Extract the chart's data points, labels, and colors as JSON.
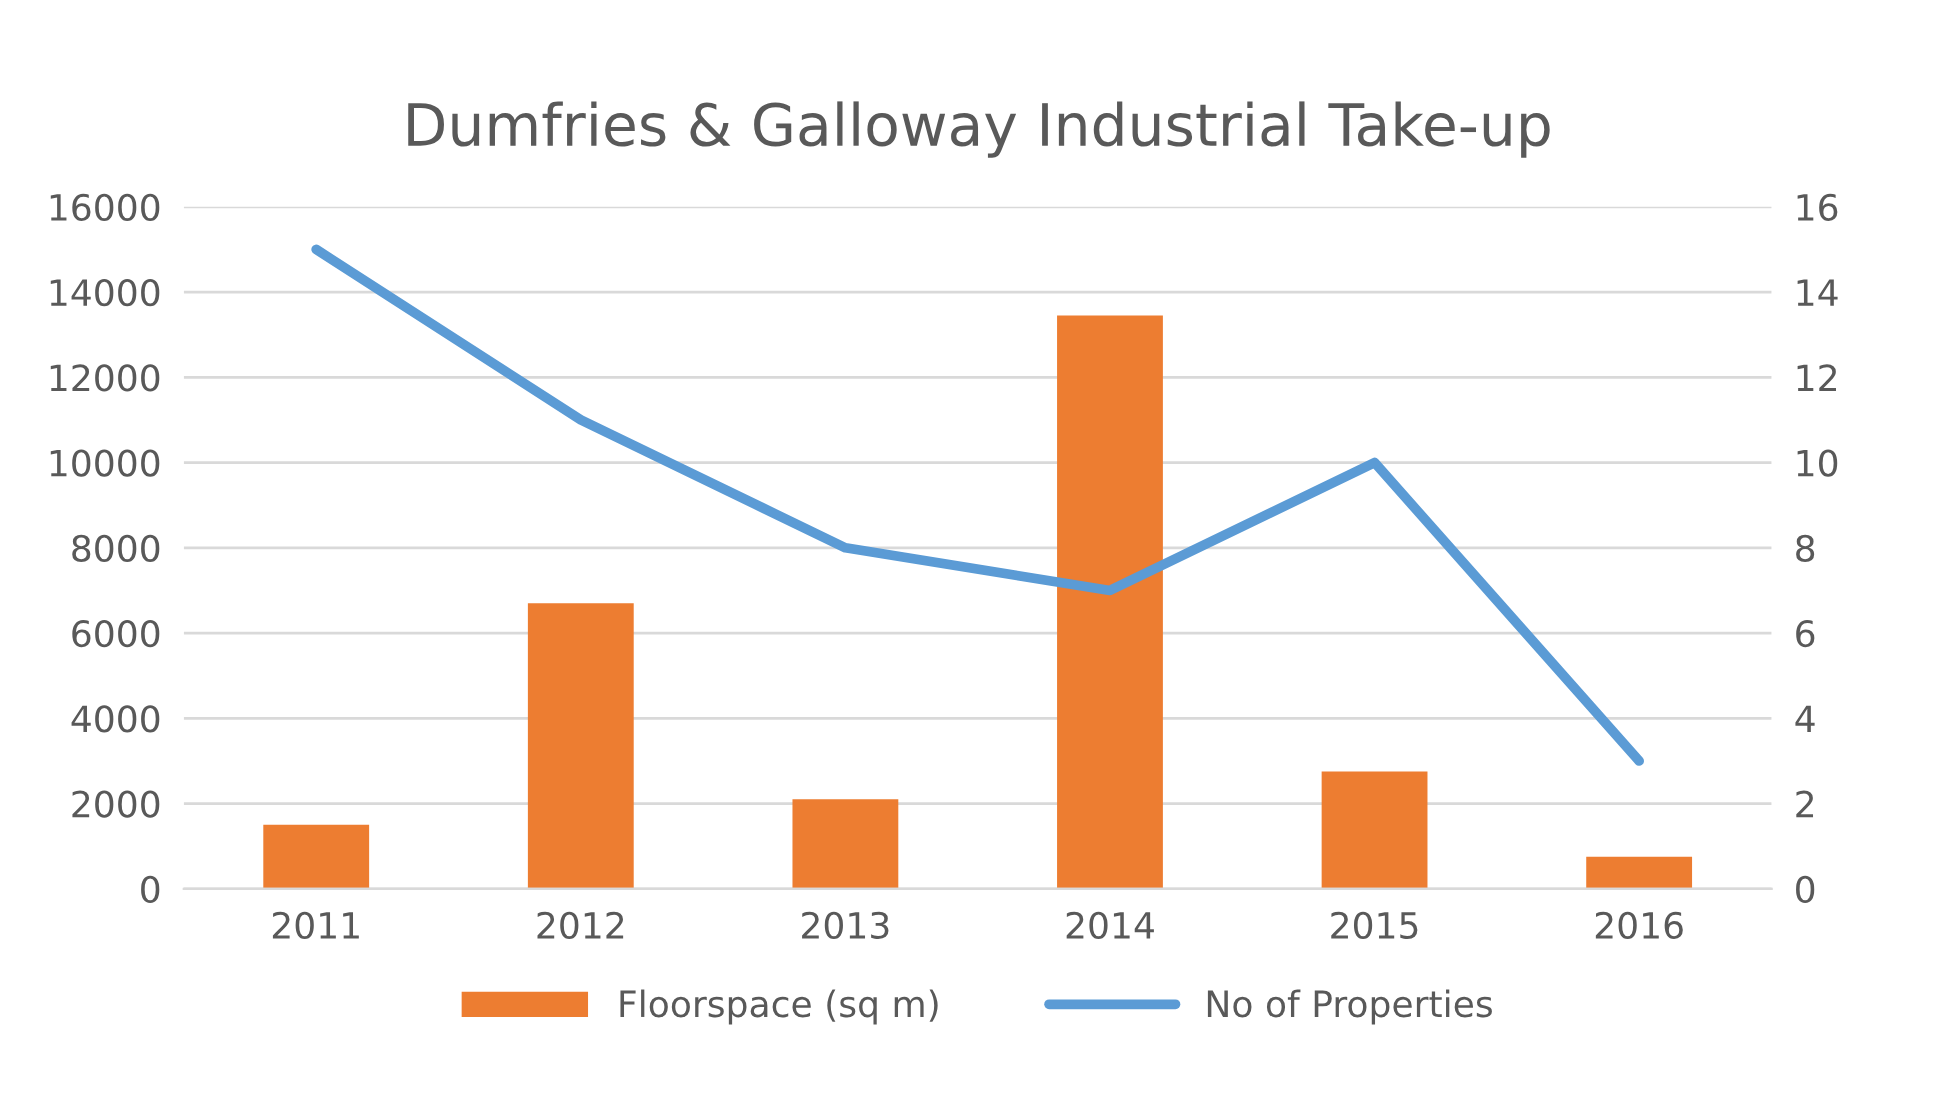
{
  "chart_data": {
    "type": "bar",
    "title": "Dumfries & Galloway Industrial Take-up",
    "categories": [
      "2011",
      "2012",
      "2013",
      "2014",
      "2015",
      "2016"
    ],
    "series": [
      {
        "name": "Floorspace (sq m)",
        "color": "#ed7d31",
        "values": [
          1500,
          6700,
          2100,
          13450,
          2750,
          750
        ]
      },
      {
        "name": "No of Properties",
        "color": "#5b9bd5",
        "type": "line",
        "axis": "y2",
        "values": [
          15,
          11,
          8,
          7,
          10,
          3
        ]
      }
    ],
    "ylim": [
      0,
      16000
    ],
    "yticks": [
      0,
      2000,
      4000,
      6000,
      8000,
      10000,
      12000,
      14000,
      16000
    ],
    "y2lim": [
      0,
      16
    ],
    "y2ticks": [
      0,
      2,
      4,
      6,
      8,
      10,
      12,
      14,
      16
    ],
    "grid": "y",
    "legend": "bottom",
    "marker": "none",
    "line_style": "solid"
  }
}
